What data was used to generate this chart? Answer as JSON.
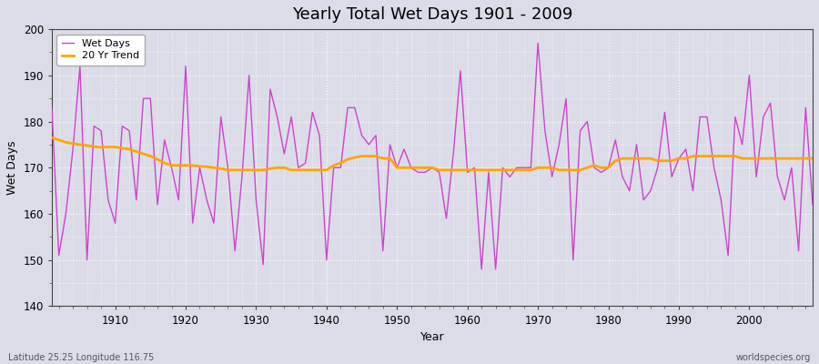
{
  "title": "Yearly Total Wet Days 1901 - 2009",
  "xlabel": "Year",
  "ylabel": "Wet Days",
  "bottom_left_label": "Latitude 25.25 Longitude 116.75",
  "bottom_right_label": "worldspecies.org",
  "ylim": [
    140,
    200
  ],
  "yticks": [
    140,
    150,
    160,
    170,
    180,
    190,
    200
  ],
  "xticks": [
    1910,
    1920,
    1930,
    1940,
    1950,
    1960,
    1970,
    1980,
    1990,
    2000
  ],
  "xlim": [
    1901,
    2009
  ],
  "legend_wet_days": "Wet Days",
  "legend_trend": "20 Yr Trend",
  "wet_days_color": "#CC44CC",
  "trend_color": "#FFA500",
  "bg_color": "#DCDCE8",
  "fig_bg_color": "#DCDCE8",
  "grid_color": "#FFFFFF",
  "years": [
    1901,
    1902,
    1903,
    1904,
    1905,
    1906,
    1907,
    1908,
    1909,
    1910,
    1911,
    1912,
    1913,
    1914,
    1915,
    1916,
    1917,
    1918,
    1919,
    1920,
    1921,
    1922,
    1923,
    1924,
    1925,
    1926,
    1927,
    1928,
    1929,
    1930,
    1931,
    1932,
    1933,
    1934,
    1935,
    1936,
    1937,
    1938,
    1939,
    1940,
    1941,
    1942,
    1943,
    1944,
    1945,
    1946,
    1947,
    1948,
    1949,
    1950,
    1951,
    1952,
    1953,
    1954,
    1955,
    1956,
    1957,
    1958,
    1959,
    1960,
    1961,
    1962,
    1963,
    1964,
    1965,
    1966,
    1967,
    1968,
    1969,
    1970,
    1971,
    1972,
    1973,
    1974,
    1975,
    1976,
    1977,
    1978,
    1979,
    1980,
    1981,
    1982,
    1983,
    1984,
    1985,
    1986,
    1987,
    1988,
    1989,
    1990,
    1991,
    1992,
    1993,
    1994,
    1995,
    1996,
    1997,
    1998,
    1999,
    2000,
    2001,
    2002,
    2003,
    2004,
    2005,
    2006,
    2007,
    2008,
    2009
  ],
  "wet_days": [
    183,
    151,
    160,
    174,
    192,
    150,
    179,
    178,
    163,
    158,
    179,
    178,
    163,
    185,
    185,
    162,
    176,
    170,
    163,
    192,
    158,
    170,
    163,
    158,
    181,
    170,
    152,
    168,
    190,
    163,
    149,
    187,
    181,
    173,
    181,
    170,
    171,
    182,
    177,
    150,
    170,
    170,
    183,
    183,
    177,
    175,
    177,
    152,
    175,
    170,
    174,
    170,
    169,
    169,
    170,
    169,
    159,
    173,
    191,
    169,
    170,
    148,
    169,
    148,
    170,
    168,
    170,
    170,
    170,
    197,
    178,
    168,
    175,
    185,
    150,
    178,
    180,
    170,
    169,
    170,
    176,
    168,
    165,
    175,
    163,
    165,
    170,
    182,
    168,
    172,
    174,
    165,
    181,
    181,
    170,
    163,
    151,
    181,
    175,
    190,
    168,
    181,
    184,
    168,
    163,
    170,
    152,
    183,
    162
  ],
  "trend_years": [
    1901,
    1902,
    1903,
    1904,
    1905,
    1906,
    1907,
    1908,
    1909,
    1910,
    1911,
    1912,
    1913,
    1914,
    1915,
    1916,
    1917,
    1918,
    1919,
    1920,
    1921,
    1922,
    1923,
    1924,
    1925,
    1926,
    1927,
    1928,
    1929,
    1930,
    1931,
    1932,
    1933,
    1934,
    1935,
    1936,
    1937,
    1938,
    1939,
    1940,
    1941,
    1942,
    1943,
    1944,
    1945,
    1946,
    1947,
    1948,
    1949,
    1950,
    1951,
    1952,
    1953,
    1954,
    1955,
    1956,
    1957,
    1958,
    1959,
    1960,
    1961,
    1962,
    1963,
    1964,
    1965,
    1966,
    1967,
    1968,
    1969,
    1970,
    1971,
    1972,
    1973,
    1974,
    1975,
    1976,
    1977,
    1978,
    1979,
    1980,
    1981,
    1982,
    1983,
    1984,
    1985,
    1986,
    1987,
    1988,
    1989,
    1990,
    1991,
    1992,
    1993,
    1994,
    1995,
    1996,
    1997,
    1998,
    1999,
    2000,
    2001,
    2002,
    2003,
    2004,
    2005,
    2006,
    2007,
    2008,
    2009
  ],
  "trend_values": [
    176.5,
    176.0,
    175.5,
    175.2,
    175.0,
    174.8,
    174.6,
    174.4,
    174.5,
    174.5,
    174.2,
    174.0,
    173.5,
    173.0,
    172.5,
    171.8,
    171.0,
    170.5,
    170.5,
    170.5,
    170.5,
    170.3,
    170.2,
    170.0,
    169.8,
    169.5,
    169.5,
    169.5,
    169.5,
    169.5,
    169.5,
    169.8,
    170.0,
    170.0,
    169.5,
    169.5,
    169.5,
    169.5,
    169.5,
    169.5,
    170.5,
    171.0,
    171.8,
    172.2,
    172.5,
    172.5,
    172.5,
    172.0,
    172.0,
    170.0,
    170.0,
    170.0,
    170.0,
    170.0,
    170.0,
    169.5,
    169.5,
    169.5,
    169.5,
    169.5,
    169.5,
    169.5,
    169.5,
    169.5,
    169.5,
    169.5,
    169.5,
    169.5,
    169.5,
    170.0,
    170.0,
    170.0,
    169.5,
    169.5,
    169.5,
    169.5,
    170.0,
    170.5,
    170.0,
    170.0,
    171.5,
    172.0,
    172.0,
    172.0,
    172.0,
    172.0,
    171.5,
    171.5,
    171.5,
    172.0,
    172.0,
    172.5,
    172.5,
    172.5,
    172.5,
    172.5,
    172.5,
    172.5,
    172.0,
    172.0,
    172.0,
    172.0,
    172.0,
    172.0,
    172.0,
    172.0,
    172.0,
    172.0,
    172.0
  ]
}
